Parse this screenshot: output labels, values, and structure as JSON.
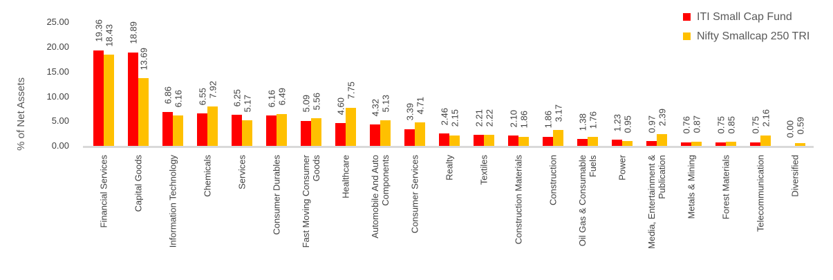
{
  "chart_data": {
    "type": "bar",
    "title": "",
    "ylabel": "% of Net Assets",
    "ylim": [
      0,
      25
    ],
    "ytick_labels": [
      "0.00",
      "5.00",
      "10.00",
      "15.00",
      "20.00",
      "25.00"
    ],
    "grid": false,
    "legend_position": "top-right",
    "value_label_decimals": 2,
    "axis_line_color": "#d9d9d9",
    "categories": [
      {
        "label": "Financial Services",
        "lines": [
          "Financial Services"
        ]
      },
      {
        "label": "Capital Goods",
        "lines": [
          "Capital Goods"
        ]
      },
      {
        "label": "Information Technology",
        "lines": [
          "Information Technology"
        ]
      },
      {
        "label": "Chemicals",
        "lines": [
          "Chemicals"
        ]
      },
      {
        "label": "Services",
        "lines": [
          "Services"
        ]
      },
      {
        "label": "Consumer Durables",
        "lines": [
          "Consumer Durables"
        ]
      },
      {
        "label": "Fast Moving Consumer Goods",
        "lines": [
          "Fast Moving Consumer",
          "Goods"
        ]
      },
      {
        "label": "Healthcare",
        "lines": [
          "Healthcare"
        ]
      },
      {
        "label": "Automobile And Auto Components",
        "lines": [
          "Automobile And Auto",
          "Components"
        ]
      },
      {
        "label": "Consumer Services",
        "lines": [
          "Consumer Services"
        ]
      },
      {
        "label": "Realty",
        "lines": [
          "Realty"
        ]
      },
      {
        "label": "Textiles",
        "lines": [
          "Textiles"
        ]
      },
      {
        "label": "Construction Materials",
        "lines": [
          "Construction Materials"
        ]
      },
      {
        "label": "Construction",
        "lines": [
          "Construction"
        ]
      },
      {
        "label": "Oil Gas & Consumable Fuels",
        "lines": [
          "Oil Gas & Consumable",
          "Fuels"
        ]
      },
      {
        "label": "Power",
        "lines": [
          "Power"
        ]
      },
      {
        "label": "Media, Entertainment & Publication",
        "lines": [
          "Media, Entertainment &",
          "Publication"
        ]
      },
      {
        "label": "Metals & Mining",
        "lines": [
          "Metals & Mining"
        ]
      },
      {
        "label": "Forest Materials",
        "lines": [
          "Forest Materials"
        ]
      },
      {
        "label": "Telecommunication",
        "lines": [
          "Telecommunication"
        ]
      },
      {
        "label": "Diversified",
        "lines": [
          "Diversified"
        ]
      }
    ],
    "series": [
      {
        "name": "ITI Small Cap Fund",
        "color": "#ff0000",
        "values": [
          19.36,
          18.89,
          6.86,
          6.55,
          6.25,
          6.16,
          5.09,
          4.6,
          4.32,
          3.39,
          2.46,
          2.21,
          2.1,
          1.86,
          1.38,
          1.23,
          0.97,
          0.76,
          0.75,
          0.75,
          0.0
        ]
      },
      {
        "name": "Nifty Smallcap 250 TRI",
        "color": "#ffc000",
        "values": [
          18.43,
          13.69,
          6.16,
          7.92,
          5.17,
          6.49,
          5.56,
          7.75,
          5.13,
          4.71,
          2.15,
          2.22,
          1.86,
          3.17,
          1.76,
          0.95,
          2.39,
          0.87,
          0.85,
          2.16,
          0.59
        ]
      }
    ]
  }
}
